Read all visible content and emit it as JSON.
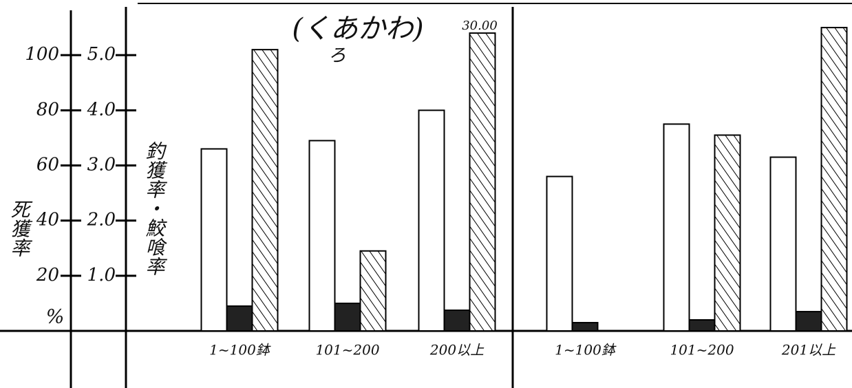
{
  "chart_data": {
    "type": "bar",
    "title": "(くあかわ)",
    "annotations": [
      "ろ",
      "30.00"
    ],
    "y_label": "死獲率",
    "y_unit": "%",
    "y2_label": "釣獲率・鮫喰率",
    "categories": [
      "1~100鉢",
      "101~200",
      "200以上",
      "1~100鉢",
      "101~200",
      "201以上"
    ],
    "series": [
      {
        "color": "#ffffff",
        "values": [
          66,
          69,
          80,
          56,
          75,
          63
        ]
      },
      {
        "color": "#222222",
        "values": [
          9,
          10,
          7.5,
          3,
          4,
          7
        ]
      },
      {
        "color": "#000000",
        "pattern": "hatch",
        "values": [
          102,
          29,
          108,
          null,
          71,
          110
        ]
      }
    ],
    "ylim": [
      0,
      120
    ],
    "yticks": [
      20,
      40,
      60,
      80,
      100
    ],
    "y2lim": [
      0,
      6
    ],
    "y2ticks": [
      {
        "value": 1,
        "label": "1.0"
      },
      {
        "value": 2,
        "label": "2.0"
      },
      {
        "value": 3,
        "label": "3.0"
      },
      {
        "value": 4,
        "label": "4.0"
      },
      {
        "value": 5,
        "label": "5.0"
      }
    ]
  }
}
